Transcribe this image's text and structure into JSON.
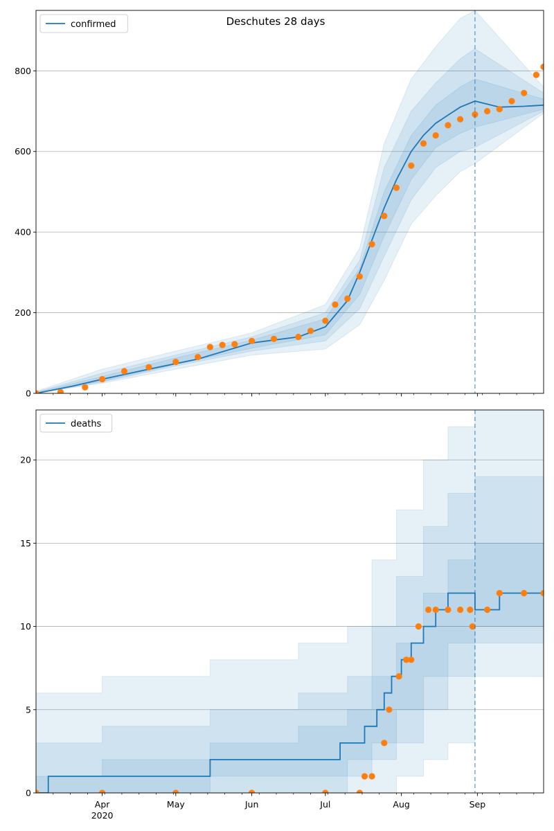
{
  "figure_title": "Deschutes 28 days",
  "x_ticks": {
    "major": [
      {
        "date": "2020-04-01",
        "label": "Apr"
      },
      {
        "date": "2020-05-01",
        "label": "May"
      },
      {
        "date": "2020-06-01",
        "label": "Jun"
      },
      {
        "date": "2020-07-01",
        "label": "Jul"
      },
      {
        "date": "2020-08-01",
        "label": "Aug"
      },
      {
        "date": "2020-09-01",
        "label": "Sep"
      }
    ],
    "year_label": "2020"
  },
  "colors": {
    "model_line": "#1f77b4",
    "band": "#1f77b4",
    "observed": "#ff7f0e",
    "grid": "#b0b0b0",
    "forecast_marker": "#1f77b4"
  },
  "chart_data": [
    {
      "type": "line",
      "panel": "top",
      "title": "Deschutes 28 days",
      "xlim": [
        "2020-03-05",
        "2020-09-28"
      ],
      "ylim": [
        0,
        950
      ],
      "yticks": [
        0,
        200,
        400,
        600,
        800
      ],
      "grid": "horizontal",
      "legend": {
        "entry": "confirmed",
        "placement": "top-left"
      },
      "forecast_start": "2020-08-31",
      "series": [
        {
          "name": "confirmed",
          "kind": "model_median",
          "x": [
            "2020-03-05",
            "2020-03-20",
            "2020-04-01",
            "2020-04-20",
            "2020-05-10",
            "2020-06-01",
            "2020-06-20",
            "2020-07-01",
            "2020-07-10",
            "2020-07-15",
            "2020-07-20",
            "2020-07-25",
            "2020-07-30",
            "2020-08-05",
            "2020-08-10",
            "2020-08-15",
            "2020-08-20",
            "2020-08-25",
            "2020-08-31",
            "2020-09-10",
            "2020-09-20",
            "2020-09-28"
          ],
          "y": [
            0,
            18,
            35,
            60,
            85,
            125,
            140,
            165,
            230,
            300,
            380,
            460,
            530,
            600,
            640,
            670,
            690,
            710,
            725,
            710,
            712,
            715
          ]
        },
        {
          "name": "observed confirmed",
          "kind": "observed_points",
          "x": [
            "2020-03-05",
            "2020-03-15",
            "2020-03-25",
            "2020-04-01",
            "2020-04-10",
            "2020-04-20",
            "2020-05-01",
            "2020-05-10",
            "2020-05-15",
            "2020-05-20",
            "2020-05-25",
            "2020-06-01",
            "2020-06-10",
            "2020-06-20",
            "2020-06-25",
            "2020-07-01",
            "2020-07-05",
            "2020-07-10",
            "2020-07-15",
            "2020-07-20",
            "2020-07-25",
            "2020-07-30",
            "2020-08-05",
            "2020-08-10",
            "2020-08-15",
            "2020-08-20",
            "2020-08-25",
            "2020-08-31",
            "2020-09-05",
            "2020-09-10",
            "2020-09-15",
            "2020-09-20",
            "2020-09-25",
            "2020-09-28"
          ],
          "y": [
            0,
            3,
            15,
            35,
            55,
            65,
            78,
            90,
            115,
            120,
            122,
            130,
            135,
            140,
            155,
            180,
            220,
            235,
            290,
            370,
            440,
            510,
            565,
            620,
            640,
            665,
            680,
            692,
            700,
            705,
            725,
            745,
            790,
            810
          ]
        }
      ],
      "bands": [
        {
          "level": 1,
          "x": [
            "2020-03-05",
            "2020-04-01",
            "2020-05-01",
            "2020-06-01",
            "2020-07-01",
            "2020-07-15",
            "2020-07-25",
            "2020-08-05",
            "2020-08-15",
            "2020-08-25",
            "2020-08-31",
            "2020-09-28"
          ],
          "lower": [
            0,
            25,
            60,
            95,
            110,
            170,
            280,
            420,
            490,
            550,
            570,
            695
          ],
          "upper": [
            5,
            60,
            105,
            150,
            220,
            360,
            620,
            780,
            860,
            930,
            950,
            760
          ]
        },
        {
          "level": 2,
          "x": [
            "2020-03-05",
            "2020-04-01",
            "2020-05-01",
            "2020-06-01",
            "2020-07-01",
            "2020-07-15",
            "2020-07-25",
            "2020-08-05",
            "2020-08-15",
            "2020-08-25",
            "2020-08-31",
            "2020-09-28"
          ],
          "lower": [
            0,
            28,
            68,
            105,
            130,
            210,
            340,
            480,
            560,
            600,
            610,
            700
          ],
          "upper": [
            3,
            50,
            95,
            140,
            200,
            330,
            560,
            700,
            770,
            830,
            855,
            745
          ]
        },
        {
          "level": 3,
          "x": [
            "2020-03-05",
            "2020-04-01",
            "2020-05-01",
            "2020-06-01",
            "2020-07-01",
            "2020-07-15",
            "2020-07-25",
            "2020-08-05",
            "2020-08-15",
            "2020-08-25",
            "2020-08-31",
            "2020-09-28"
          ],
          "lower": [
            0,
            30,
            72,
            112,
            145,
            245,
            390,
            530,
            610,
            645,
            660,
            705
          ],
          "upper": [
            2,
            42,
            88,
            132,
            185,
            310,
            500,
            640,
            715,
            760,
            780,
            730
          ]
        }
      ]
    },
    {
      "type": "line",
      "panel": "bottom",
      "xlim": [
        "2020-03-05",
        "2020-09-28"
      ],
      "ylim": [
        0,
        23
      ],
      "yticks": [
        0,
        5,
        10,
        15,
        20
      ],
      "grid": "horizontal",
      "legend": {
        "entry": "deaths",
        "placement": "top-left"
      },
      "forecast_start": "2020-08-31",
      "series": [
        {
          "name": "deaths",
          "kind": "model_median_step",
          "x": [
            "2020-03-05",
            "2020-03-10",
            "2020-05-15",
            "2020-07-07",
            "2020-07-17",
            "2020-07-22",
            "2020-07-25",
            "2020-07-28",
            "2020-08-01",
            "2020-08-05",
            "2020-08-10",
            "2020-08-15",
            "2020-08-20",
            "2020-08-31",
            "2020-09-10",
            "2020-09-28"
          ],
          "y": [
            0,
            1,
            2,
            3,
            4,
            5,
            6,
            7,
            8,
            9,
            10,
            11,
            12,
            11,
            12,
            12
          ]
        },
        {
          "name": "observed deaths",
          "kind": "observed_points",
          "x": [
            "2020-03-05",
            "2020-04-01",
            "2020-05-01",
            "2020-06-01",
            "2020-07-01",
            "2020-07-15",
            "2020-07-17",
            "2020-07-20",
            "2020-07-25",
            "2020-07-27",
            "2020-07-31",
            "2020-08-03",
            "2020-08-05",
            "2020-08-08",
            "2020-08-12",
            "2020-08-15",
            "2020-08-20",
            "2020-08-25",
            "2020-08-29",
            "2020-08-30",
            "2020-09-05",
            "2020-09-10",
            "2020-09-20",
            "2020-09-28"
          ],
          "y": [
            0,
            0,
            0,
            0,
            0,
            0,
            1,
            1,
            3,
            5,
            7,
            8,
            8,
            10,
            11,
            11,
            11,
            11,
            11,
            10,
            11,
            12,
            12,
            12
          ]
        }
      ],
      "bands": [
        {
          "level": 1,
          "x": [
            "2020-03-05",
            "2020-04-01",
            "2020-05-15",
            "2020-06-20",
            "2020-07-10",
            "2020-07-20",
            "2020-07-30",
            "2020-08-10",
            "2020-08-20",
            "2020-08-31",
            "2020-09-28"
          ],
          "lower": [
            0,
            0,
            0,
            0,
            0,
            0,
            1,
            2,
            3,
            7,
            11
          ],
          "upper": [
            6,
            7,
            8,
            9,
            10,
            14,
            17,
            20,
            22,
            23,
            15
          ]
        },
        {
          "level": 2,
          "x": [
            "2020-03-05",
            "2020-04-01",
            "2020-05-15",
            "2020-06-20",
            "2020-07-10",
            "2020-07-20",
            "2020-07-30",
            "2020-08-10",
            "2020-08-20",
            "2020-08-31",
            "2020-09-28"
          ],
          "lower": [
            0,
            0,
            0,
            0,
            1,
            2,
            3,
            5,
            7,
            9,
            11
          ],
          "upper": [
            3,
            4,
            5,
            6,
            7,
            10,
            13,
            16,
            18,
            19,
            14
          ]
        },
        {
          "level": 3,
          "x": [
            "2020-03-05",
            "2020-04-01",
            "2020-05-15",
            "2020-06-20",
            "2020-07-10",
            "2020-07-20",
            "2020-07-30",
            "2020-08-10",
            "2020-08-20",
            "2020-08-31",
            "2020-09-28"
          ],
          "lower": [
            0,
            0,
            1,
            1,
            2,
            3,
            5,
            7,
            9,
            10,
            11
          ],
          "upper": [
            1,
            2,
            3,
            4,
            5,
            7,
            9,
            12,
            14,
            15,
            13
          ]
        }
      ]
    }
  ]
}
